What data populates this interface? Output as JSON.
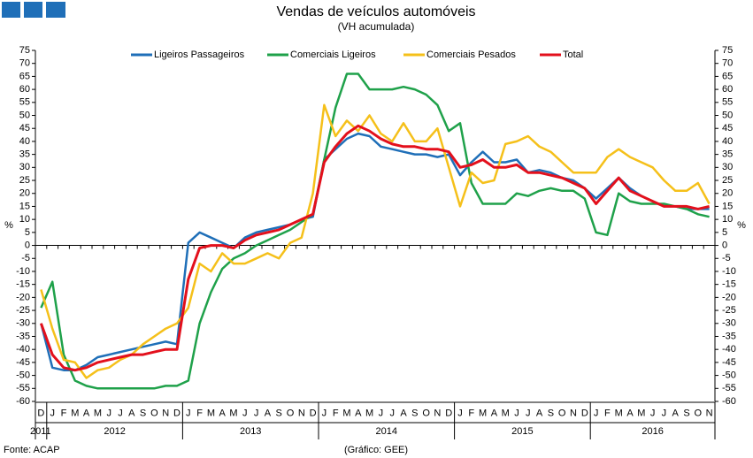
{
  "chart_data": {
    "type": "line",
    "title": "Vendas de veículos automóveis",
    "subtitle": "(VH acumulada)",
    "y_label": "%",
    "source": "Fonte: ACAP",
    "credit": "(Gráfico: GEE)",
    "categories": [
      "D",
      "J",
      "F",
      "M",
      "A",
      "M",
      "J",
      "J",
      "A",
      "S",
      "O",
      "N",
      "D",
      "J",
      "F",
      "M",
      "A",
      "M",
      "J",
      "J",
      "A",
      "S",
      "O",
      "N",
      "D",
      "J",
      "F",
      "M",
      "A",
      "M",
      "J",
      "J",
      "A",
      "S",
      "O",
      "N",
      "D",
      "J",
      "F",
      "M",
      "A",
      "M",
      "J",
      "J",
      "A",
      "S",
      "O",
      "N",
      "D",
      "J",
      "F",
      "M",
      "A",
      "M",
      "J",
      "J",
      "A",
      "S",
      "O",
      "N"
    ],
    "years": [
      "2011",
      "2012",
      "2013",
      "2014",
      "2015",
      "2016"
    ],
    "ylim": [
      -60,
      75
    ],
    "yticks": [
      -60,
      -55,
      -50,
      -45,
      -40,
      -35,
      -30,
      -25,
      -20,
      -15,
      -10,
      -5,
      0,
      5,
      10,
      15,
      20,
      25,
      30,
      35,
      40,
      45,
      50,
      55,
      60,
      65,
      70,
      75
    ],
    "y2lim": [
      -60,
      75
    ],
    "y2ticks": [
      -60,
      -55,
      -50,
      -45,
      -40,
      -35,
      -30,
      -25,
      -20,
      -15,
      -10,
      -5,
      0,
      5,
      10,
      15,
      20,
      25,
      30,
      35,
      40,
      45,
      50,
      55,
      60,
      65,
      70,
      75
    ],
    "legend": "top",
    "series": [
      {
        "name": "Ligeiros Passageiros",
        "color": "#1f6fb8",
        "values": [
          -30,
          -47,
          -48,
          -48,
          -46,
          -43,
          -42,
          -41,
          -40,
          -39,
          -38,
          -37,
          -38,
          1,
          5,
          3,
          1,
          -1,
          3,
          5,
          6,
          7,
          8,
          10,
          11,
          33,
          37,
          41,
          43,
          42,
          38,
          37,
          36,
          35,
          35,
          34,
          35,
          27,
          32,
          36,
          32,
          32,
          33,
          28,
          29,
          28,
          26,
          25,
          22,
          18,
          22,
          26,
          22,
          19,
          17,
          15,
          15,
          14,
          14,
          14
        ]
      },
      {
        "name": "Comerciais Ligeiros",
        "color": "#1fa14a",
        "values": [
          -24,
          -14,
          -42,
          -52,
          -54,
          -55,
          -55,
          -55,
          -55,
          -55,
          -55,
          -54,
          -54,
          -52,
          -30,
          -18,
          -9,
          -5,
          -3,
          0,
          2,
          4,
          6,
          9,
          12,
          33,
          53,
          66,
          66,
          60,
          60,
          60,
          61,
          60,
          58,
          54,
          44,
          47,
          24,
          16,
          16,
          16,
          20,
          19,
          21,
          22,
          21,
          21,
          18,
          5,
          4,
          20,
          17,
          16,
          16,
          16,
          15,
          14,
          12,
          11
        ]
      },
      {
        "name": "Comerciais Pesados",
        "color": "#f5c01a",
        "values": [
          -17,
          -32,
          -44,
          -45,
          -51,
          -48,
          -47,
          -44,
          -42,
          -38,
          -35,
          -32,
          -30,
          -24,
          -7,
          -10,
          -3,
          -7,
          -7,
          -5,
          -3,
          -5,
          1,
          3,
          20,
          54,
          42,
          48,
          44,
          50,
          43,
          40,
          47,
          40,
          40,
          45,
          30,
          15,
          28,
          24,
          25,
          39,
          40,
          42,
          38,
          36,
          32,
          28,
          28,
          28,
          34,
          37,
          34,
          32,
          30,
          25,
          21,
          21,
          24,
          16
        ]
      },
      {
        "name": "Total",
        "color": "#e3101c",
        "values": [
          -30,
          -42,
          -47,
          -48,
          -47,
          -45,
          -44,
          -43,
          -42,
          -42,
          -41,
          -40,
          -40,
          -13,
          -1,
          0,
          0,
          -1,
          2,
          4,
          5,
          6,
          8,
          10,
          12,
          32,
          38,
          43,
          46,
          44,
          41,
          39,
          38,
          38,
          37,
          37,
          36,
          30,
          31,
          33,
          30,
          30,
          31,
          28,
          28,
          27,
          26,
          24,
          22,
          16,
          21,
          26,
          21,
          19,
          17,
          15,
          15,
          15,
          14,
          15
        ]
      }
    ]
  }
}
